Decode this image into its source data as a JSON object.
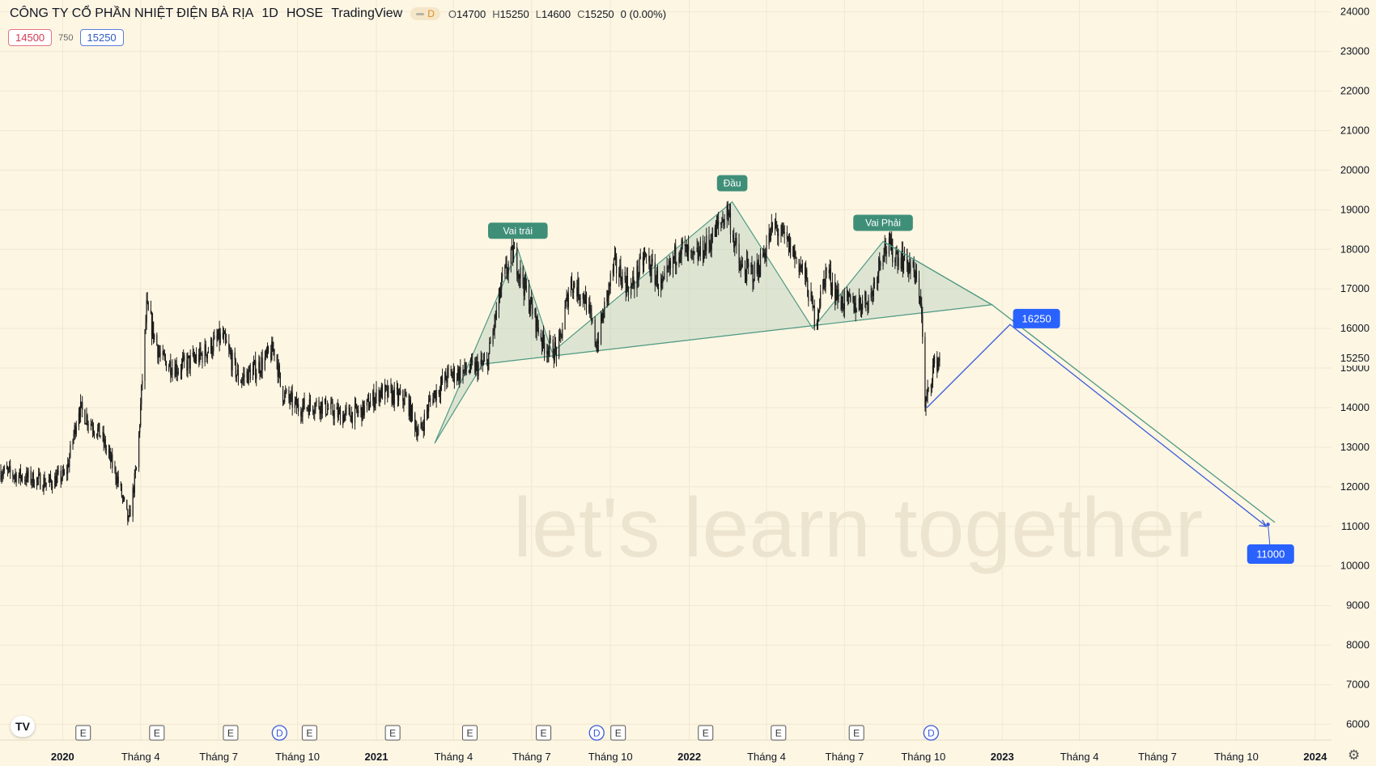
{
  "header": {
    "title": "CÔNG TY CỔ PHẦN NHIỆT ĐIỆN BÀ RỊA",
    "interval": "1D",
    "exchange": "HOSE",
    "source": "TradingView",
    "market_badge": "D",
    "open_label": "O",
    "open": "14700",
    "high_label": "H",
    "high": "15250",
    "low_label": "L",
    "low": "14600",
    "close_label": "C",
    "close": "15250",
    "change": "0 (0.00%)"
  },
  "quotes": {
    "sell": "14500",
    "spread": "750",
    "buy": "15250"
  },
  "logo": "TV",
  "colors": {
    "background": "#fdf6e3",
    "candle": "#1c1c1c",
    "pattern": "#4f9a83",
    "projection": "#3a5bd9",
    "label_blue": "#2962ff",
    "label_green": "#3f8f78"
  },
  "chart_data": {
    "type": "candlestick",
    "x_range": [
      "2019-10-20",
      "2024-01-20"
    ],
    "y_range": [
      5600,
      24300
    ],
    "y_ticks": [
      6000,
      7000,
      8000,
      9000,
      10000,
      11000,
      12000,
      13000,
      14000,
      15000,
      16000,
      17000,
      18000,
      19000,
      20000,
      21000,
      22000,
      23000,
      24000
    ],
    "x_ticks": [
      {
        "date": "2020-01-01",
        "label": "2020"
      },
      {
        "date": "2020-04-01",
        "label": "Tháng 4"
      },
      {
        "date": "2020-07-01",
        "label": "Tháng 7"
      },
      {
        "date": "2020-10-01",
        "label": "Tháng 10"
      },
      {
        "date": "2021-01-01",
        "label": "2021"
      },
      {
        "date": "2021-04-01",
        "label": "Tháng 4"
      },
      {
        "date": "2021-07-01",
        "label": "Tháng 7"
      },
      {
        "date": "2021-10-01",
        "label": "Tháng 10"
      },
      {
        "date": "2022-01-01",
        "label": "2022"
      },
      {
        "date": "2022-04-01",
        "label": "Tháng 4"
      },
      {
        "date": "2022-07-01",
        "label": "Tháng 7"
      },
      {
        "date": "2022-10-01",
        "label": "Tháng 10"
      },
      {
        "date": "2023-01-01",
        "label": "2023"
      },
      {
        "date": "2023-04-01",
        "label": "Tháng 4"
      },
      {
        "date": "2023-07-01",
        "label": "Tháng 7"
      },
      {
        "date": "2023-10-01",
        "label": "Tháng 10"
      },
      {
        "date": "2024-01-01",
        "label": "2024"
      }
    ],
    "last_price": "15250",
    "price_path": [
      [
        "2019-10-20",
        12400
      ],
      [
        "2019-12-15",
        12100
      ],
      [
        "2020-01-05",
        12300
      ],
      [
        "2020-01-20",
        14000
      ],
      [
        "2020-02-15",
        13300
      ],
      [
        "2020-03-05",
        12200
      ],
      [
        "2020-03-18",
        11100
      ],
      [
        "2020-03-28",
        12600
      ],
      [
        "2020-04-08",
        16500
      ],
      [
        "2020-04-25",
        15200
      ],
      [
        "2020-05-15",
        15000
      ],
      [
        "2020-06-10",
        15300
      ],
      [
        "2020-07-05",
        15800
      ],
      [
        "2020-07-25",
        14700
      ],
      [
        "2020-08-15",
        15000
      ],
      [
        "2020-09-05",
        15500
      ],
      [
        "2020-09-12",
        14400
      ],
      [
        "2020-10-01",
        14000
      ],
      [
        "2020-10-25",
        14100
      ],
      [
        "2020-11-20",
        13800
      ],
      [
        "2020-12-15",
        13900
      ],
      [
        "2021-01-05",
        14400
      ],
      [
        "2021-02-05",
        14200
      ],
      [
        "2021-02-20",
        13300
      ],
      [
        "2021-03-05",
        14200
      ],
      [
        "2021-03-25",
        14800
      ],
      [
        "2021-04-10",
        14900
      ],
      [
        "2021-05-10",
        15100
      ],
      [
        "2021-05-28",
        17200
      ],
      [
        "2021-06-10",
        17900
      ],
      [
        "2021-06-25",
        16900
      ],
      [
        "2021-07-15",
        15600
      ],
      [
        "2021-08-01",
        15400
      ],
      [
        "2021-08-15",
        17200
      ],
      [
        "2021-09-01",
        16800
      ],
      [
        "2021-09-15",
        15600
      ],
      [
        "2021-10-05",
        17600
      ],
      [
        "2021-10-25",
        17000
      ],
      [
        "2021-11-10",
        17800
      ],
      [
        "2021-12-01",
        17000
      ],
      [
        "2021-12-20",
        18100
      ],
      [
        "2022-01-05",
        17700
      ],
      [
        "2022-01-25",
        18200
      ],
      [
        "2022-02-15",
        19000
      ],
      [
        "2022-03-01",
        17500
      ],
      [
        "2022-03-20",
        17400
      ],
      [
        "2022-04-10",
        18600
      ],
      [
        "2022-04-30",
        18000
      ],
      [
        "2022-05-15",
        17400
      ],
      [
        "2022-05-28",
        16200
      ],
      [
        "2022-06-10",
        17500
      ],
      [
        "2022-06-25",
        16700
      ],
      [
        "2022-07-15",
        16600
      ],
      [
        "2022-08-01",
        16800
      ],
      [
        "2022-08-15",
        18100
      ],
      [
        "2022-09-05",
        17800
      ],
      [
        "2022-09-18",
        17500
      ],
      [
        "2022-09-28",
        16800
      ],
      [
        "2022-10-03",
        14000
      ],
      [
        "2022-10-12",
        15000
      ],
      [
        "2022-10-20",
        15250
      ]
    ],
    "pattern_polygon": [
      [
        "2021-03-10",
        13100
      ],
      [
        "2021-06-15",
        18000
      ],
      [
        "2021-07-25",
        15400
      ],
      [
        "2022-02-20",
        19200
      ],
      [
        "2022-05-25",
        16000
      ],
      [
        "2022-08-15",
        18200
      ],
      [
        "2022-12-20",
        16600
      ],
      [
        "2021-05-05",
        15100
      ]
    ],
    "neckline": [
      [
        "2021-05-05",
        15100
      ],
      [
        "2022-12-20",
        16600
      ]
    ],
    "pattern_right_edge": [
      [
        "2022-08-15",
        18200
      ],
      [
        "2022-12-20",
        16600
      ]
    ],
    "down_channel": [
      [
        "2022-12-20",
        16600
      ],
      [
        "2023-11-15",
        11100
      ]
    ],
    "projection_path": [
      [
        "2022-10-05",
        14000
      ],
      [
        "2023-01-10",
        16100
      ],
      [
        "2023-11-05",
        11000
      ]
    ],
    "projection_arrow_tip": [
      "2023-11-05",
      11000
    ],
    "point_markers": [
      [
        "2023-01-15",
        16200
      ],
      [
        "2023-11-07",
        11050
      ]
    ],
    "pattern_labels": [
      {
        "text": "Vai trái",
        "date": "2021-06-15",
        "price": 18000
      },
      {
        "text": "Đầu",
        "date": "2022-02-20",
        "price": 19200
      },
      {
        "text": "Vai Phải",
        "date": "2022-08-15",
        "price": 18200
      }
    ],
    "price_labels": [
      {
        "text": "16250",
        "date": "2023-02-10",
        "price": 16250,
        "anchor": [
          "2023-01-15",
          16200
        ]
      },
      {
        "text": "11000",
        "date": "2023-11-10",
        "price": 10300,
        "anchor": [
          "2023-11-07",
          11050
        ]
      }
    ],
    "events": [
      {
        "type": "E",
        "date": "2020-01-25"
      },
      {
        "type": "E",
        "date": "2020-04-20"
      },
      {
        "type": "E",
        "date": "2020-07-15"
      },
      {
        "type": "D",
        "date": "2020-09-10"
      },
      {
        "type": "E",
        "date": "2020-10-15"
      },
      {
        "type": "E",
        "date": "2021-01-20"
      },
      {
        "type": "E",
        "date": "2021-04-20"
      },
      {
        "type": "E",
        "date": "2021-07-15"
      },
      {
        "type": "D",
        "date": "2021-09-15"
      },
      {
        "type": "E",
        "date": "2021-10-10"
      },
      {
        "type": "E",
        "date": "2022-01-20"
      },
      {
        "type": "E",
        "date": "2022-04-15"
      },
      {
        "type": "E",
        "date": "2022-07-15"
      },
      {
        "type": "D",
        "date": "2022-10-10"
      }
    ],
    "watermark": "let's learn together",
    "grid": true
  }
}
